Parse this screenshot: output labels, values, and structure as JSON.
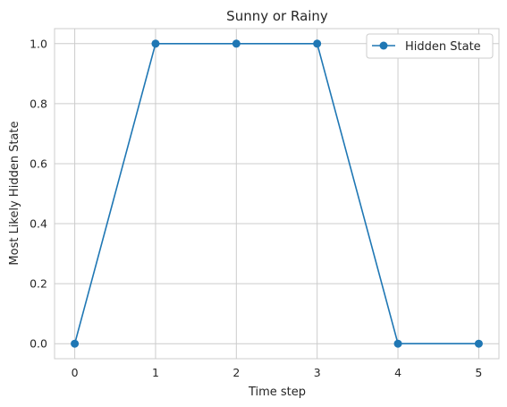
{
  "chart_data": {
    "type": "line",
    "title": "Sunny or Rainy",
    "xlabel": "Time step",
    "ylabel": "Most Likely Hidden State",
    "x": [
      0,
      1,
      2,
      3,
      4,
      5
    ],
    "xlim": [
      -0.25,
      5.25
    ],
    "ylim": [
      -0.05,
      1.05
    ],
    "xticks": [
      "0",
      "1",
      "2",
      "3",
      "4",
      "5"
    ],
    "yticks": [
      "0.0",
      "0.2",
      "0.4",
      "0.6",
      "0.8",
      "1.0"
    ],
    "grid": true,
    "legend_position": "top-right",
    "series": [
      {
        "name": "Hidden State",
        "values": [
          0,
          1,
          1,
          1,
          0,
          0
        ],
        "color": "#1f77b4",
        "marker": "circle"
      }
    ]
  }
}
